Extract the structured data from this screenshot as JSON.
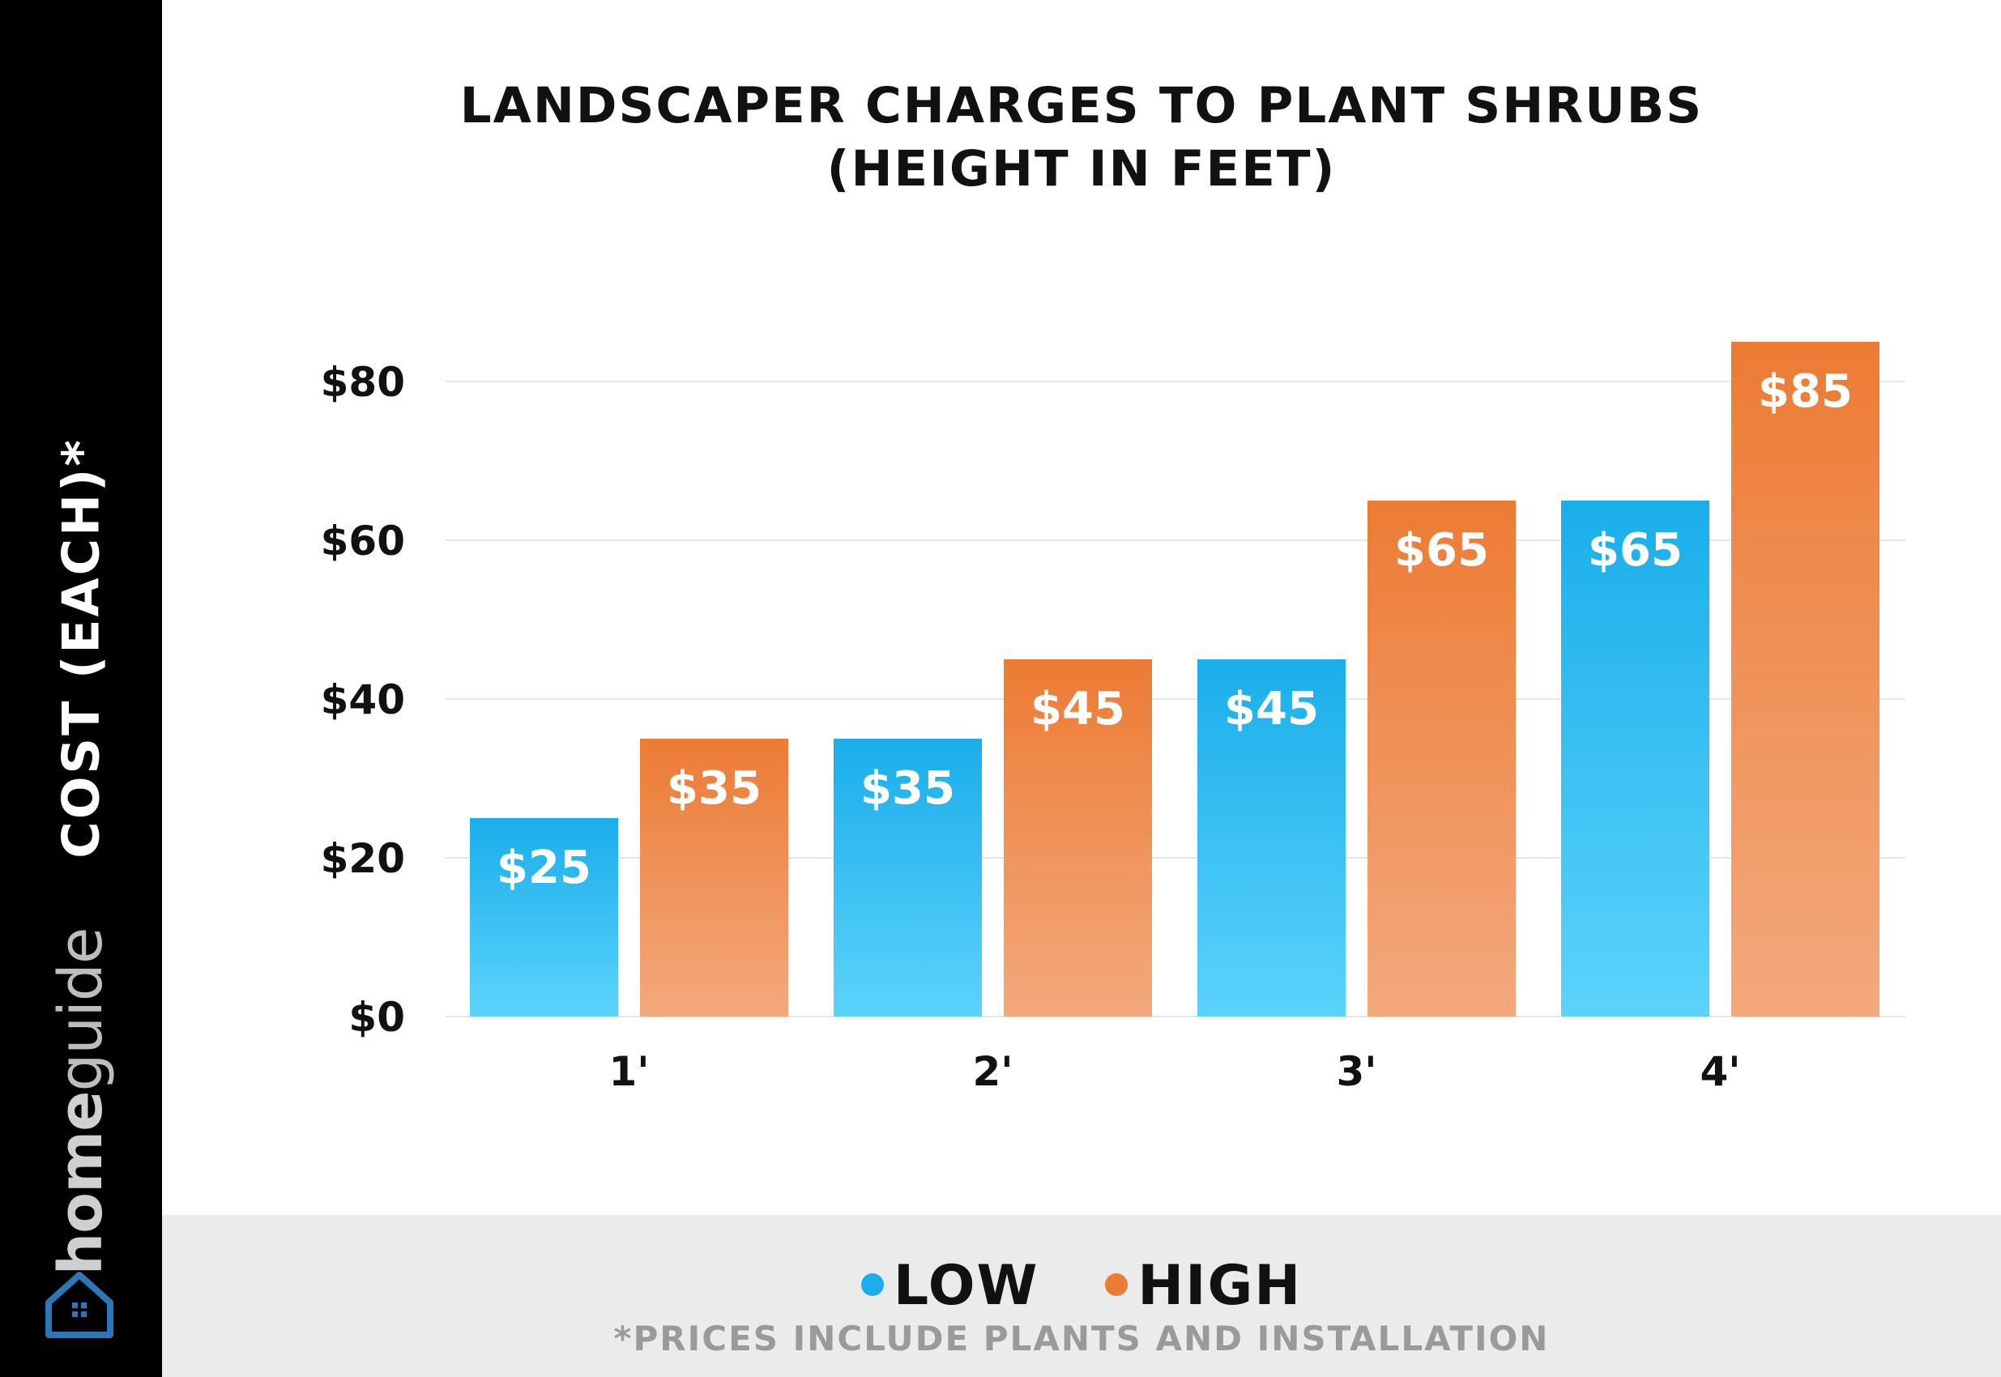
{
  "sidebar": {
    "axis_label": "COST (EACH)*",
    "brand_home": "home",
    "brand_guide": "guide",
    "logo_icon": "house-icon"
  },
  "colors": {
    "low_top": "#1aaeea",
    "low_bottom": "#5bd3fb",
    "high_top": "#ec7b34",
    "high_bottom": "#f3a97d",
    "grid": "#e6e6e6"
  },
  "legend": {
    "low_label": "LOW",
    "high_label": "HIGH",
    "note": "*PRICES INCLUDE PLANTS AND INSTALLATION"
  },
  "chart_data": {
    "type": "bar",
    "title_line1": "LANDSCAPER CHARGES TO PLANT SHRUBS",
    "title_line2": "(HEIGHT IN FEET)",
    "categories": [
      "1'",
      "2'",
      "3'",
      "4'"
    ],
    "series": [
      {
        "name": "LOW",
        "values": [
          25,
          35,
          45,
          65
        ],
        "labels": [
          "$25",
          "$35",
          "$45",
          "$65"
        ]
      },
      {
        "name": "HIGH",
        "values": [
          35,
          45,
          65,
          85
        ],
        "labels": [
          "$35",
          "$45",
          "$65",
          "$85"
        ]
      }
    ],
    "yticks": [
      0,
      20,
      40,
      60,
      80
    ],
    "ytick_labels": [
      "$0",
      "$20",
      "$40",
      "$60",
      "$80"
    ],
    "ylabel": "COST (EACH)*",
    "xlabel": "",
    "ylim": [
      0,
      85
    ],
    "grid": true
  }
}
